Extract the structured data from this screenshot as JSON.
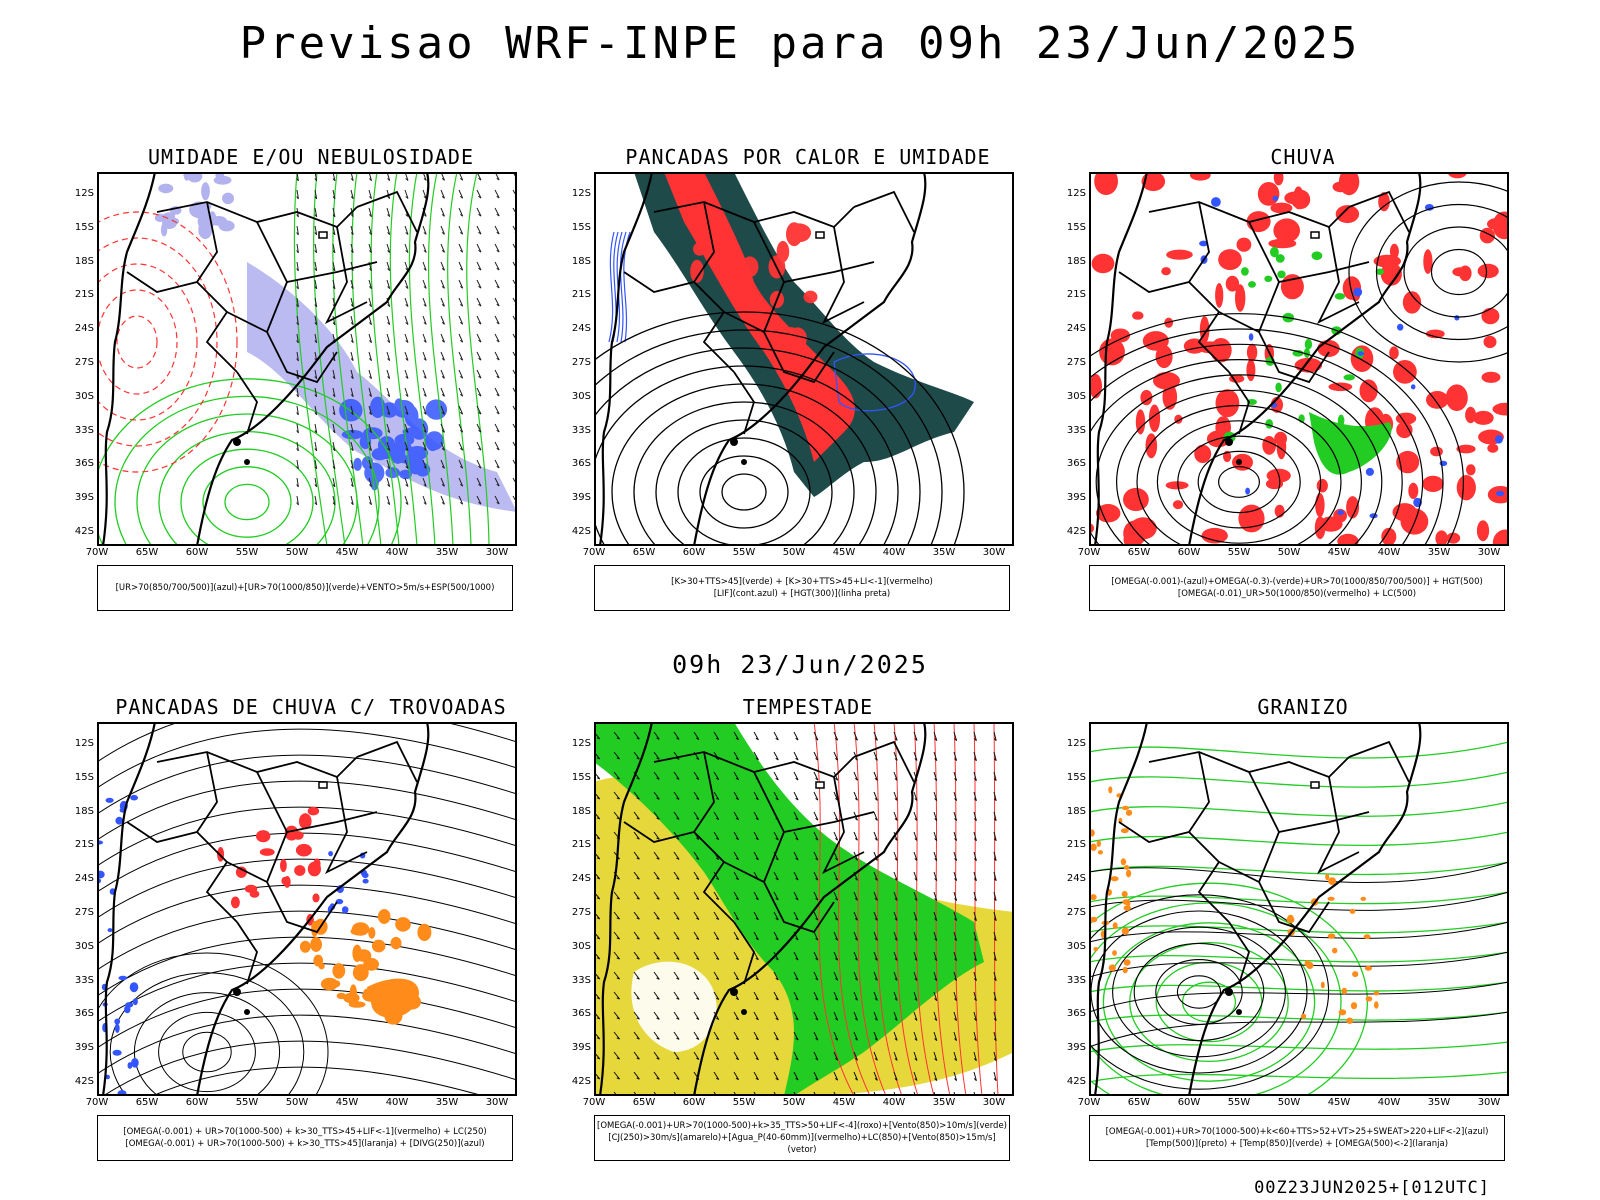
{
  "title": "Previsao WRF-INPE  para 09h 23/Jun/2025",
  "mid_title": "09h 23/Jun/2025",
  "footer": "00Z23JUN2025+[012UTC]",
  "axes": {
    "lat_labels": [
      "12S",
      "15S",
      "18S",
      "21S",
      "24S",
      "27S",
      "30S",
      "33S",
      "36S",
      "39S",
      "42S"
    ],
    "lon_labels": [
      "70W",
      "65W",
      "60W",
      "55W",
      "50W",
      "45W",
      "40W",
      "35W",
      "30W"
    ]
  },
  "colors": {
    "red": "#ff3333",
    "green": "#22cc22",
    "blue": "#3355ff",
    "lavender": "#aaaaee",
    "darkteal": "#1e4a4a",
    "yellow": "#e6d83a",
    "orange": "#ff8c1a"
  },
  "panels": [
    {
      "title": "UMIDADE E/OU NEBULOSIDADE",
      "legend": [
        "[UR>70(850/700/500)](azul)+[UR>70(1000/850)](verde)+VENTO>5m/s+ESP(500/1000)"
      ]
    },
    {
      "title": "PANCADAS POR CALOR E UMIDADE",
      "legend": [
        "[K>30+TTS>45](verde) + [K>30+TTS>45+LI<-1](vermelho)",
        "[LIF](cont.azul) + [HGT(300)](linha preta)"
      ]
    },
    {
      "title": "CHUVA",
      "legend": [
        "[OMEGA(-0.001)-(azul)+OMEGA(-0.3)-(verde)+UR>70(1000/850/700/500)] + HGT(500)",
        "[OMEGA(-0.01)_UR>50(1000/850)(vermelho) + LC(500)"
      ]
    },
    {
      "title": "PANCADAS DE CHUVA C/ TROVOADAS",
      "legend": [
        "[OMEGA(-0.001) + UR>70(1000-500) + k>30_TTS>45+LIF<-1](vermelho) + LC(250)",
        "[OMEGA(-0.001) + UR>70(1000-500) + k>30_TTS>45](laranja) + [DIVG(250)](azul)"
      ]
    },
    {
      "title": "TEMPESTADE",
      "legend": [
        "[OMEGA(-0.001)+UR>70(1000-500)+k>35_TTS>50+LIF<-4](roxo)+[Vento(850)>10m/s](verde)",
        "[CJ(250)>30m/s](amarelo)+[Agua_P(40-60mm)](vermelho)+LC(850)+[Vento(850)>15m/s](vetor)"
      ]
    },
    {
      "title": "GRANIZO",
      "legend": [
        "[OMEGA(-0.001)+UR>70(1000-500)+k<60+TTS>52+VT>25+SWEAT>220+LIF<-2](azul)",
        "[Temp(500)](preto) + [Temp(850)](verde) + [OMEGA(500)<-2](laranja)"
      ]
    }
  ]
}
